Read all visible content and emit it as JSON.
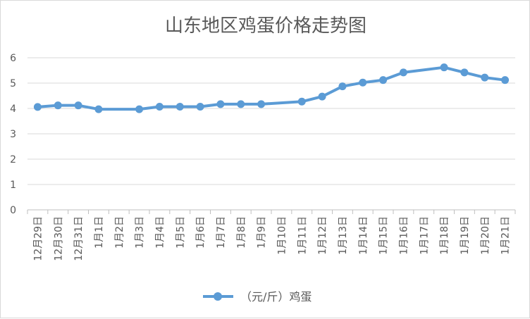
{
  "chart_data": {
    "type": "line",
    "title": "山东地区鸡蛋价格走势图",
    "xlabel": "",
    "ylabel": "",
    "ylim": [
      0,
      6
    ],
    "yticks": [
      0,
      1,
      2,
      3,
      4,
      5,
      6
    ],
    "grid": true,
    "legend_position": "bottom",
    "line_color": "#5b9bd5",
    "categories": [
      "12月29日",
      "12月30日",
      "12月31日",
      "1月1日",
      "1月2日",
      "1月3日",
      "1月4日",
      "1月5日",
      "1月6日",
      "1月7日",
      "1月8日",
      "1月9日",
      "1月10日",
      "1月11日",
      "1月12日",
      "1月13日",
      "1月14日",
      "1月15日",
      "1月16日",
      "1月17日",
      "1月18日",
      "1月19日",
      "1月20日",
      "1月21日"
    ],
    "series": [
      {
        "name": "（元/斤）鸡蛋",
        "values": [
          4.06,
          4.12,
          4.12,
          3.97,
          null,
          3.97,
          4.07,
          4.07,
          4.07,
          4.17,
          4.17,
          4.17,
          null,
          4.27,
          4.47,
          4.87,
          5.02,
          5.12,
          5.42,
          null,
          5.62,
          5.42,
          5.22,
          5.12
        ]
      }
    ]
  }
}
